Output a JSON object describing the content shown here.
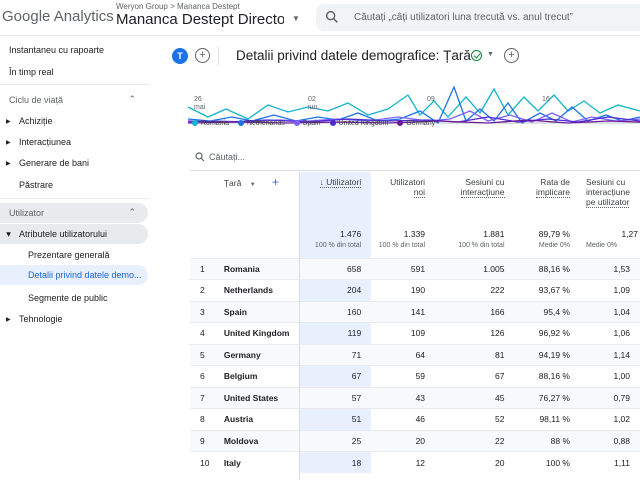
{
  "topbar": {
    "logo_text": "Google Analytics",
    "account_path": "Weryon Group > Mananca Destept",
    "property_name": "Mananca Destept Director ...",
    "search_placeholder": "Căutați „câți utilizatori luna trecută vs. anul trecut”"
  },
  "sidebar": {
    "top_items": [
      "Instantaneu cu rapoarte",
      "În timp real"
    ],
    "section1": {
      "label": "Ciclu de viață",
      "items": [
        "Achiziție",
        "Interacțiunea",
        "Generare de bani",
        "Păstrare"
      ]
    },
    "section2": {
      "label": "Utilizator",
      "group": "Atributele utilizatorului",
      "sub_items": [
        "Prezentare generală",
        "Detalii privind datele demo...",
        "Segmente de public"
      ],
      "other": "Tehnologie"
    }
  },
  "header": {
    "avatar_letter": "T",
    "title": "Detalii privind datele demografice: Țară"
  },
  "chart": {
    "xticks": [
      {
        "day": "26",
        "month": "mai"
      },
      {
        "day": "02",
        "month": "iun."
      },
      {
        "day": "09",
        "month": ""
      },
      {
        "day": "16",
        "month": ""
      }
    ],
    "legend": [
      {
        "name": "Romania",
        "color": "#12b5cb"
      },
      {
        "name": "Netherlands",
        "color": "#1a73e8"
      },
      {
        "name": "Spain",
        "color": "#7b61ff"
      },
      {
        "name": "United Kingdom",
        "color": "#4e2bd1"
      },
      {
        "name": "Germany",
        "color": "#6a1b9a"
      }
    ]
  },
  "table": {
    "search_placeholder": "Căutați...",
    "dimension_header": "Țară",
    "columns": [
      {
        "line1": "↓ Utilizatori",
        "line2": ""
      },
      {
        "line1": "Utilizatori",
        "line2": "noi"
      },
      {
        "line1": "Sesiuni cu",
        "line2": "interacțiune"
      },
      {
        "line1": "Rata de",
        "line2": "implicare"
      },
      {
        "line1": "Sesiuni cu",
        "line2": "interacțiune",
        "line3": "pe utilizator"
      }
    ],
    "totals": [
      {
        "value": "1.476",
        "sub": "100 % din total"
      },
      {
        "value": "1.339",
        "sub": "100 % din total"
      },
      {
        "value": "1.881",
        "sub": "100 % din total"
      },
      {
        "value": "89,79 %",
        "sub": "Medie 0%"
      },
      {
        "value": "1,27",
        "sub": "Medie 0%"
      }
    ],
    "rows": [
      {
        "idx": "1",
        "country": "Romania",
        "users": "658",
        "new_users": "591",
        "sessions": "1.005",
        "rate": "88,16 %",
        "per_user": "1,53"
      },
      {
        "idx": "2",
        "country": "Netherlands",
        "users": "204",
        "new_users": "190",
        "sessions": "222",
        "rate": "93,67 %",
        "per_user": "1,09"
      },
      {
        "idx": "3",
        "country": "Spain",
        "users": "160",
        "new_users": "141",
        "sessions": "166",
        "rate": "95,4 %",
        "per_user": "1,04"
      },
      {
        "idx": "4",
        "country": "United Kingdom",
        "users": "119",
        "new_users": "109",
        "sessions": "126",
        "rate": "96,92 %",
        "per_user": "1,06"
      },
      {
        "idx": "5",
        "country": "Germany",
        "users": "71",
        "new_users": "64",
        "sessions": "81",
        "rate": "94,19 %",
        "per_user": "1,14"
      },
      {
        "idx": "6",
        "country": "Belgium",
        "users": "67",
        "new_users": "59",
        "sessions": "67",
        "rate": "88,16 %",
        "per_user": "1,00"
      },
      {
        "idx": "7",
        "country": "United States",
        "users": "57",
        "new_users": "43",
        "sessions": "45",
        "rate": "76,27 %",
        "per_user": "0,79"
      },
      {
        "idx": "8",
        "country": "Austria",
        "users": "51",
        "new_users": "46",
        "sessions": "52",
        "rate": "98,11 %",
        "per_user": "1,02"
      },
      {
        "idx": "9",
        "country": "Moldova",
        "users": "25",
        "new_users": "20",
        "sessions": "22",
        "rate": "88 %",
        "per_user": "0,88"
      },
      {
        "idx": "10",
        "country": "Italy",
        "users": "18",
        "new_users": "12",
        "sessions": "20",
        "rate": "100 %",
        "per_user": "1,11"
      }
    ]
  }
}
